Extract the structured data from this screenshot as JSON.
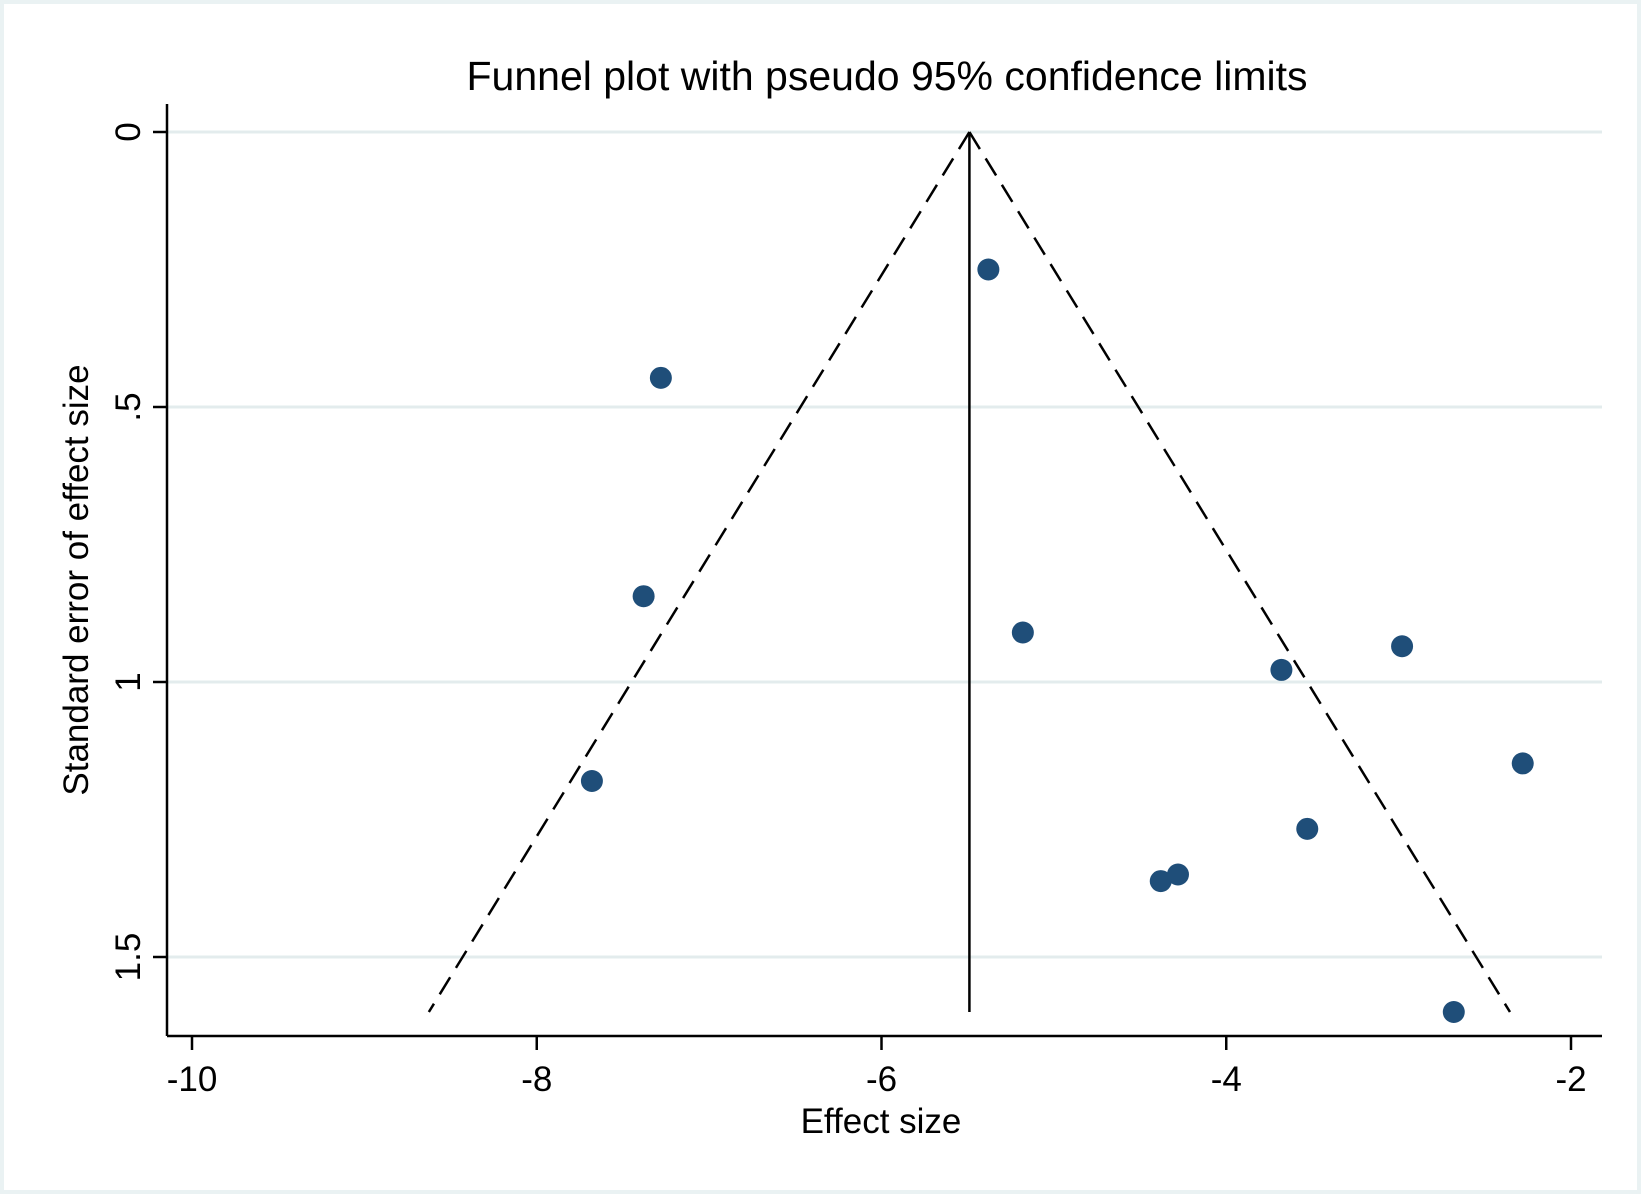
{
  "chart_data": {
    "type": "scatter",
    "title": "Funnel plot with pseudo 95% confidence limits",
    "xlabel": "Effect size",
    "ylabel": "Standard error of effect size",
    "xlim": [
      -10.15,
      -1.85
    ],
    "ylim": [
      0,
      1.65
    ],
    "y_reversed": true,
    "x_ticks": [
      -10,
      -8,
      -6,
      -4,
      -2
    ],
    "x_tick_labels": [
      "-10",
      "-8",
      "-6",
      "-4",
      "-2"
    ],
    "y_ticks": [
      0,
      0.5,
      1,
      1.5
    ],
    "y_tick_labels": [
      "0",
      ".5",
      "1",
      "1.5"
    ],
    "grid": "horizontal",
    "pooled_effect": -5.49,
    "funnel_se_max": 1.6,
    "points": [
      {
        "x": -5.38,
        "y": 0.25
      },
      {
        "x": -7.28,
        "y": 0.447
      },
      {
        "x": -7.38,
        "y": 0.844
      },
      {
        "x": -7.68,
        "y": 1.18
      },
      {
        "x": -5.18,
        "y": 0.91
      },
      {
        "x": -3.68,
        "y": 0.978
      },
      {
        "x": -2.98,
        "y": 0.935
      },
      {
        "x": -2.28,
        "y": 1.148
      },
      {
        "x": -3.53,
        "y": 1.267
      },
      {
        "x": -4.28,
        "y": 1.35
      },
      {
        "x": -4.38,
        "y": 1.362
      },
      {
        "x": -2.68,
        "y": 1.6
      }
    ],
    "colors": {
      "point": "#1f4e79",
      "grid": "#e3eced",
      "axis": "#000000",
      "background": "#ffffff",
      "outer": "#eaf2f3"
    }
  }
}
